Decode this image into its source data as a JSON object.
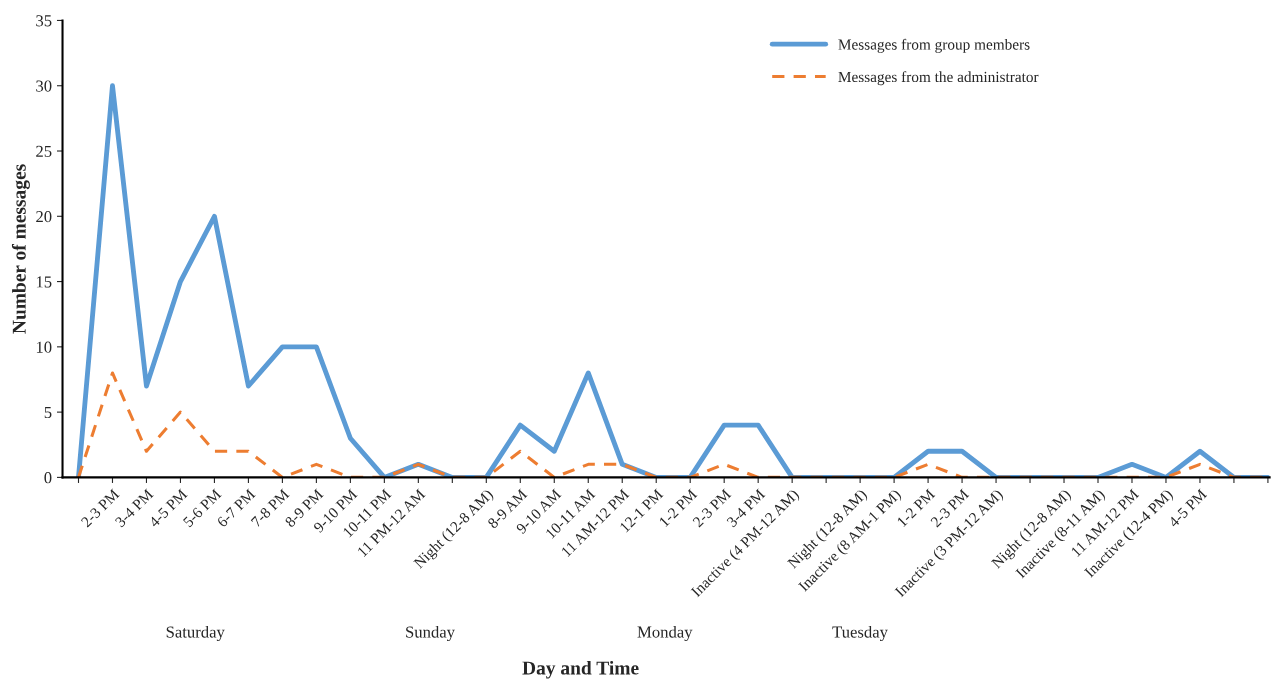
{
  "chart_data": {
    "type": "line",
    "xlabel": "Day and Time",
    "ylabel": "Number of messages",
    "categories": [
      null,
      "2-3 PM",
      "3-4 PM",
      "4-5 PM",
      "5-6 PM",
      "6-7 PM",
      "7-8 PM",
      "8-9 PM",
      "9-10 PM",
      "10-11 PM",
      "11 PM-12 AM",
      null,
      "Night (12-8 AM)",
      "8-9 AM",
      "9-10 AM",
      "10-11 AM",
      "11 AM-12 PM",
      "12-1 PM",
      "1-2 PM",
      "2-3 PM",
      "3-4 PM",
      "Inactive (4 PM-12 AM)",
      null,
      "Night (12-8 AM)",
      "Inactive (8 AM-1 PM)",
      "1-2 PM",
      "2-3 PM",
      "Inactive (3 PM-12 AM)",
      null,
      "Night (12-8 AM)",
      "Inactive (8-11 AM)",
      "11 AM-12 PM",
      "Inactive (12-4 PM)",
      "4-5 PM",
      null,
      null
    ],
    "series": [
      {
        "name": "Messages from group members",
        "color": "#5b9bd5",
        "line_style": "solid",
        "values": [
          0,
          30,
          7,
          15,
          20,
          7,
          10,
          10,
          3,
          0,
          1,
          0,
          0,
          4,
          2,
          8,
          1,
          0,
          0,
          4,
          4,
          0,
          0,
          0,
          0,
          2,
          2,
          0,
          0,
          0,
          0,
          1,
          0,
          2,
          0,
          0
        ]
      },
      {
        "name": "Messages from the administrator",
        "color": "#ed7d31",
        "line_style": "dashed",
        "values": [
          0,
          8,
          2,
          5,
          2,
          2,
          0,
          1,
          0,
          0,
          1,
          0,
          0,
          2,
          0,
          1,
          1,
          0,
          0,
          1,
          0,
          0,
          0,
          0,
          0,
          1,
          0,
          0,
          0,
          0,
          0,
          0,
          0,
          1,
          0,
          0
        ]
      }
    ],
    "annotations": [
      "Saturday",
      "Sunday",
      "Monday",
      "Tuesday"
    ],
    "ylim": [
      0,
      35
    ],
    "yticks": [
      0,
      5,
      10,
      15,
      20,
      25,
      30,
      35
    ],
    "grid": false,
    "legend": "top right"
  }
}
